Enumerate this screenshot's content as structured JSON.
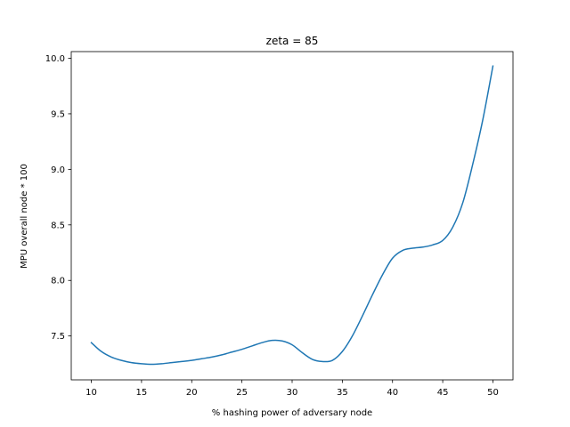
{
  "chart_data": {
    "type": "line",
    "title": "zeta = 85",
    "xlabel": "% hashing power of adversary node",
    "ylabel": "MPU overall node * 100",
    "xlim": [
      8.0,
      52.0
    ],
    "ylim": [
      7.105,
      10.06
    ],
    "xticks": [
      10,
      15,
      20,
      25,
      30,
      35,
      40,
      45,
      50
    ],
    "xtick_labels": [
      "10",
      "15",
      "20",
      "25",
      "30",
      "35",
      "40",
      "45",
      "50"
    ],
    "yticks": [
      7.5,
      8.0,
      8.5,
      9.0,
      9.5,
      10.0
    ],
    "ytick_labels": [
      "7.5",
      "8.0",
      "8.5",
      "9.0",
      "9.5",
      "10.0"
    ],
    "grid": false,
    "colors": {
      "line": "#1f77b4",
      "axes": "#000000",
      "background": "#ffffff"
    },
    "series": [
      {
        "x": [
          10,
          11,
          12,
          13,
          14,
          15,
          16,
          17,
          18,
          19,
          20,
          21,
          22,
          23,
          24,
          25,
          26,
          27,
          28,
          29,
          30,
          31,
          32,
          33,
          34,
          35,
          36,
          37,
          38,
          39,
          40,
          41,
          42,
          43,
          44,
          45,
          46,
          47,
          48,
          49,
          50
        ],
        "y": [
          7.44,
          7.36,
          7.31,
          7.28,
          7.26,
          7.25,
          7.245,
          7.25,
          7.26,
          7.27,
          7.28,
          7.295,
          7.31,
          7.33,
          7.355,
          7.38,
          7.41,
          7.44,
          7.46,
          7.455,
          7.42,
          7.35,
          7.29,
          7.27,
          7.28,
          7.36,
          7.5,
          7.68,
          7.87,
          8.05,
          8.2,
          8.27,
          8.29,
          8.3,
          8.32,
          8.36,
          8.48,
          8.7,
          9.05,
          9.45,
          9.93
        ]
      }
    ]
  }
}
